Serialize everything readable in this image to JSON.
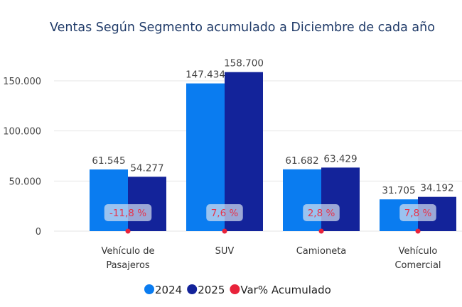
{
  "chart_data": {
    "type": "bar",
    "title": "Ventas Según Segmento acumulado a Diciembre de cada año",
    "categories": [
      [
        "Vehículo de",
        "Pasajeros"
      ],
      [
        "SUV"
      ],
      [
        "Camioneta"
      ],
      [
        "Vehículo",
        "Comercial"
      ]
    ],
    "series": [
      {
        "name": "2024",
        "color": "#0a7cf0",
        "values": [
          61545,
          147434,
          61682,
          31705
        ],
        "labels": [
          "61.545",
          "147.434",
          "61.682",
          "31.705"
        ]
      },
      {
        "name": "2025",
        "color": "#13239a",
        "values": [
          54277,
          158700,
          63429,
          34192
        ],
        "labels": [
          "54.277",
          "158.700",
          "63.429",
          "34.192"
        ]
      },
      {
        "name": "Var% Acumulado",
        "color": "#e8223a",
        "type": "marker",
        "values": [
          -11.8,
          7.6,
          2.8,
          7.8
        ],
        "labels": [
          "-11,8 %",
          "7,6 %",
          "2,8 %",
          "7,8 %"
        ]
      }
    ],
    "yticks": [
      0,
      50000,
      100000,
      150000
    ],
    "ytick_labels": [
      "0",
      "50.000",
      "100.000",
      "150.000"
    ],
    "ylim": [
      0,
      165000
    ],
    "grid": true,
    "legend": "bottom"
  }
}
